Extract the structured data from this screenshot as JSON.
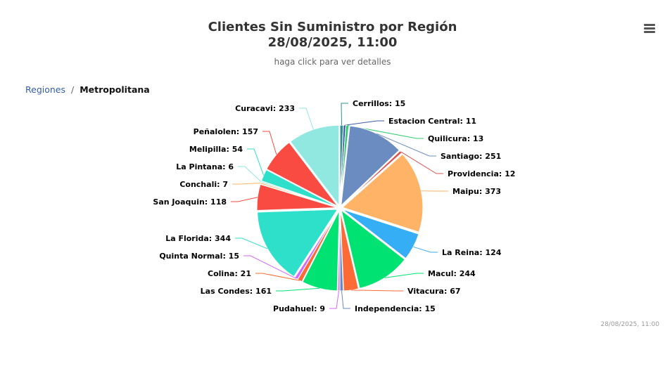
{
  "chart": {
    "title_line1": "Clientes Sin Suministro por Región",
    "title_line2": "28/08/2025, 11:00",
    "subtitle": "haga click para ver detalles",
    "credits": "28/08/2025, 11:00"
  },
  "breadcrumb": {
    "parent": "Regiones",
    "separator": "/",
    "current": "Metropolitana"
  },
  "menu_icon": "hamburger-menu-icon",
  "chart_data": {
    "type": "pie",
    "title": "Clientes Sin Suministro por Región 28/08/2025, 11:00",
    "subtitle": "haga click para ver detalles",
    "label_format": "{name}: {value}",
    "slices": [
      {
        "name": "Cerrillos",
        "value": 15,
        "color": "#2b908f"
      },
      {
        "name": "Estacion Central",
        "value": 11,
        "color": "#3b5ba5"
      },
      {
        "name": "Quilicura",
        "value": 13,
        "color": "#2ecc71"
      },
      {
        "name": "Santiago",
        "value": 251,
        "color": "#6b8cc0"
      },
      {
        "name": "Providencia",
        "value": 12,
        "color": "#d9534f"
      },
      {
        "name": "Maipu",
        "value": 373,
        "color": "#ffb366"
      },
      {
        "name": "La Reina",
        "value": 124,
        "color": "#36aef5"
      },
      {
        "name": "Macul",
        "value": 244,
        "color": "#00e272"
      },
      {
        "name": "Vitacura",
        "value": 67,
        "color": "#fe6a35"
      },
      {
        "name": "Independencia",
        "value": 15,
        "color": "#6b8abc"
      },
      {
        "name": "Pudahuel",
        "value": 9,
        "color": "#d568fb"
      },
      {
        "name": "Las Condes",
        "value": 161,
        "color": "#00e272"
      },
      {
        "name": "Colina",
        "value": 21,
        "color": "#fe6a35"
      },
      {
        "name": "Quinta Normal",
        "value": 15,
        "color": "#d568fb"
      },
      {
        "name": "La Florida",
        "value": 344,
        "color": "#2ee0ca"
      },
      {
        "name": "San Joaquin",
        "value": 118,
        "color": "#fa4b42"
      },
      {
        "name": "Conchali",
        "value": 7,
        "color": "#feb56a"
      },
      {
        "name": "La Pintana",
        "value": 6,
        "color": "#91e8e1"
      },
      {
        "name": "Melipilla",
        "value": 54,
        "color": "#2ee0ca"
      },
      {
        "name": "Peñalolen",
        "value": 157,
        "color": "#fa4b42"
      },
      {
        "name": "Curacavi",
        "value": 233,
        "color": "#91e8e1"
      }
    ]
  }
}
